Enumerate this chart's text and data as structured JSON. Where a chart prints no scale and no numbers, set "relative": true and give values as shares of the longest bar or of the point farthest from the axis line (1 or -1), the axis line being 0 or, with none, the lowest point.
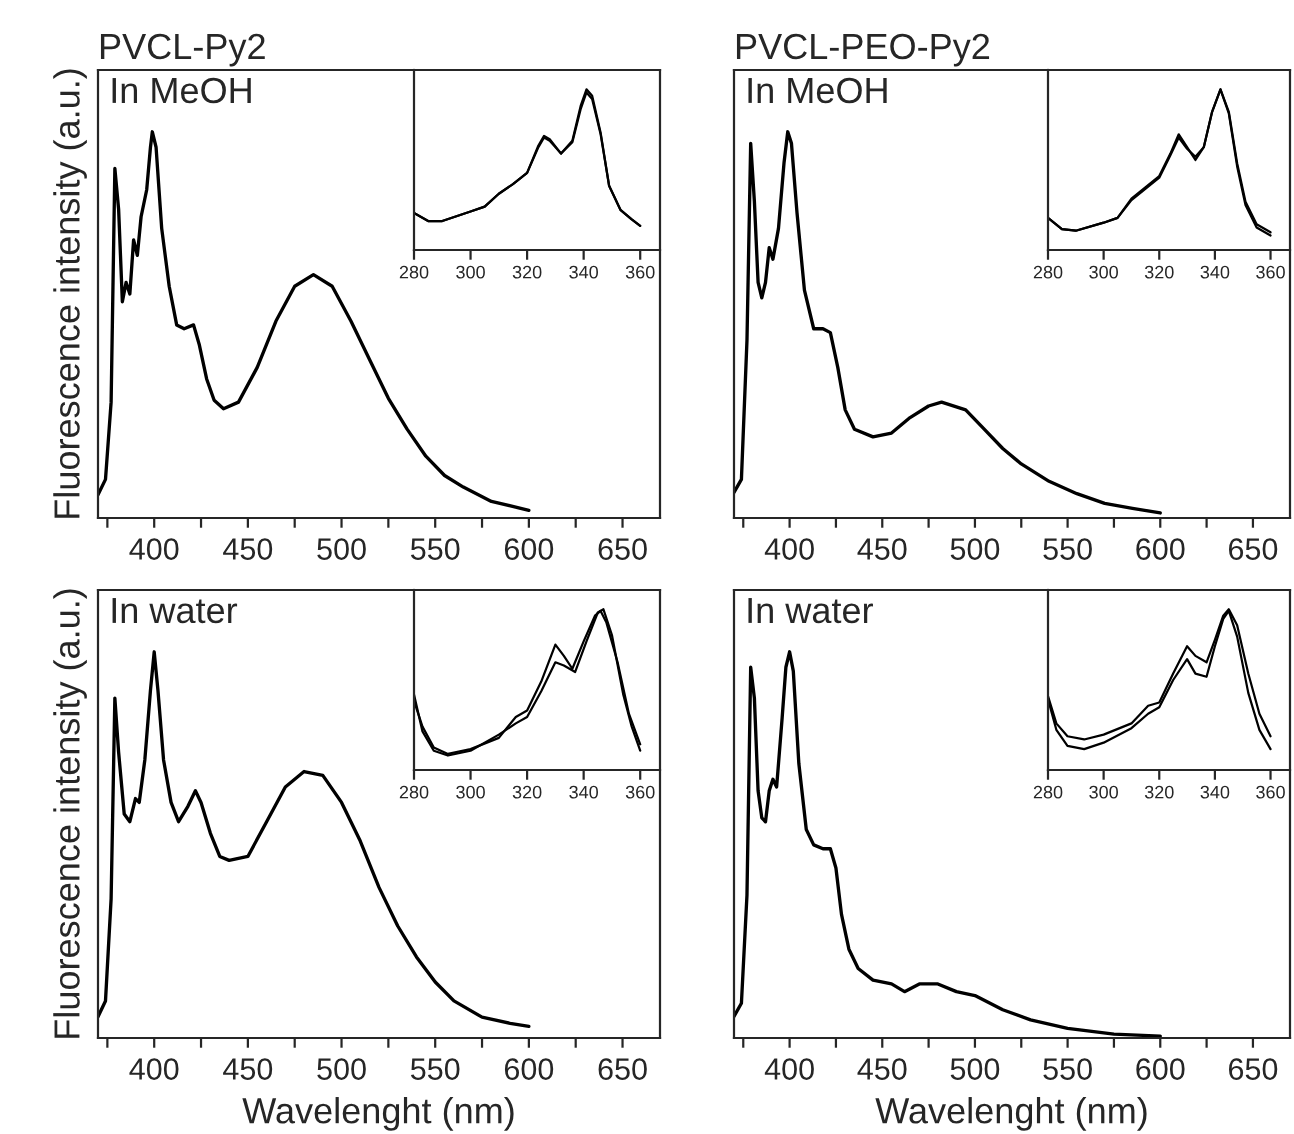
{
  "chart_data": [
    {
      "type": "line",
      "title": "PVCL-Py2",
      "ylabel": "Fluorescence intensity (a.u.)",
      "annotations": [
        "In MeOH"
      ],
      "relative": true,
      "tick_labels": "x",
      "xlim": [
        370,
        670
      ],
      "xticks": [
        {
          "value": 375,
          "label": null
        },
        400,
        {
          "value": 425,
          "label": null
        },
        450,
        {
          "value": 475,
          "label": null
        },
        500,
        {
          "value": 525,
          "label": null
        },
        550,
        {
          "value": 575,
          "label": null
        },
        600,
        {
          "value": 625,
          "label": null
        },
        650
      ],
      "series": [
        {
          "color": "#000000",
          "x": [
            370,
            374,
            377,
            379,
            381,
            383,
            385,
            387,
            389,
            391,
            393,
            396,
            398,
            399,
            401,
            404,
            408,
            412,
            416,
            421,
            424,
            428,
            432,
            437,
            445,
            455,
            465,
            475,
            485,
            495,
            505,
            515,
            525,
            535,
            545,
            555,
            565,
            580,
            600
          ],
          "values": [
            0.06,
            0.1,
            0.3,
            0.905,
            0.8,
            0.56,
            0.61,
            0.58,
            0.72,
            0.68,
            0.78,
            0.85,
            0.96,
            1.0,
            0.96,
            0.75,
            0.6,
            0.5,
            0.49,
            0.5,
            0.45,
            0.36,
            0.305,
            0.283,
            0.3,
            0.39,
            0.51,
            0.6,
            0.63,
            0.6,
            0.51,
            0.41,
            0.31,
            0.23,
            0.16,
            0.11,
            0.08,
            0.043,
            0.02
          ]
        }
      ]
    },
    {
      "type": "line",
      "relative": true,
      "tick_labels": "x",
      "xlim": [
        280,
        367
      ],
      "xticks": [
        280,
        300,
        320,
        340,
        360
      ],
      "series": [
        {
          "color": "#000000",
          "x": [
            280,
            285,
            290,
            300,
            305,
            310,
            315,
            320,
            324,
            326,
            328,
            332,
            336,
            339,
            341,
            343,
            346,
            349,
            353,
            357,
            360
          ],
          "values": [
            0.23,
            0.18,
            0.18,
            0.24,
            0.27,
            0.35,
            0.41,
            0.48,
            0.65,
            0.71,
            0.69,
            0.6,
            0.68,
            0.9,
            1.0,
            0.96,
            0.73,
            0.4,
            0.25,
            0.19,
            0.15
          ]
        },
        {
          "color": "#000000",
          "x": [
            280,
            285,
            290,
            300,
            305,
            310,
            315,
            320,
            324,
            326,
            328,
            332,
            336,
            339,
            341,
            343,
            346,
            349,
            353,
            357,
            360
          ],
          "values": [
            0.23,
            0.18,
            0.18,
            0.24,
            0.27,
            0.35,
            0.41,
            0.48,
            0.64,
            0.7,
            0.68,
            0.6,
            0.67,
            0.88,
            0.98,
            0.94,
            0.72,
            0.4,
            0.25,
            0.19,
            0.15
          ]
        }
      ]
    },
    {
      "type": "line",
      "title": "PVCL-PEO-Py2",
      "annotations": [
        "In MeOH"
      ],
      "relative": true,
      "tick_labels": "x",
      "xlim": [
        370,
        670
      ],
      "xticks": [
        {
          "value": 375,
          "label": null
        },
        400,
        {
          "value": 425,
          "label": null
        },
        450,
        {
          "value": 475,
          "label": null
        },
        500,
        {
          "value": 525,
          "label": null
        },
        550,
        {
          "value": 575,
          "label": null
        },
        600,
        {
          "value": 625,
          "label": null
        },
        650
      ],
      "series": [
        {
          "color": "#000000",
          "x": [
            370,
            374,
            377,
            379,
            381,
            383,
            385,
            387,
            389,
            391,
            394,
            397,
            399,
            401,
            404,
            408,
            413,
            418,
            422,
            426,
            430,
            435,
            445,
            455,
            465,
            475,
            482,
            495,
            505,
            515,
            525,
            540,
            555,
            570,
            585,
            600
          ],
          "values": [
            0.066,
            0.1,
            0.46,
            0.97,
            0.82,
            0.61,
            0.57,
            0.61,
            0.7,
            0.67,
            0.75,
            0.92,
            1.0,
            0.97,
            0.79,
            0.59,
            0.49,
            0.49,
            0.48,
            0.39,
            0.28,
            0.23,
            0.21,
            0.22,
            0.26,
            0.29,
            0.3,
            0.28,
            0.23,
            0.18,
            0.14,
            0.095,
            0.063,
            0.038,
            0.025,
            0.013
          ]
        }
      ]
    },
    {
      "type": "line",
      "relative": true,
      "tick_labels": "x",
      "xlim": [
        280,
        367
      ],
      "xticks": [
        280,
        300,
        320,
        340,
        360
      ],
      "series": [
        {
          "color": "#000000",
          "x": [
            280,
            285,
            290,
            300,
            305,
            310,
            315,
            320,
            324,
            327,
            330,
            333,
            336,
            339,
            342,
            345,
            348,
            351,
            355,
            360
          ],
          "values": [
            0.2,
            0.13,
            0.12,
            0.17,
            0.2,
            0.32,
            0.39,
            0.46,
            0.6,
            0.72,
            0.64,
            0.56,
            0.64,
            0.86,
            1.0,
            0.86,
            0.54,
            0.3,
            0.16,
            0.11
          ]
        },
        {
          "color": "#000000",
          "x": [
            280,
            285,
            290,
            300,
            305,
            310,
            315,
            320,
            324,
            327,
            330,
            333,
            336,
            339,
            342,
            345,
            348,
            351,
            355,
            360
          ],
          "values": [
            0.2,
            0.13,
            0.12,
            0.17,
            0.2,
            0.31,
            0.38,
            0.45,
            0.59,
            0.7,
            0.63,
            0.58,
            0.64,
            0.86,
            1.0,
            0.85,
            0.52,
            0.28,
            0.14,
            0.09
          ]
        }
      ]
    },
    {
      "type": "line",
      "xlabel": "Wavelenght (nm)",
      "ylabel": "Fluorescence intensity (a.u.)",
      "annotations": [
        "In water"
      ],
      "relative": true,
      "tick_labels": "x",
      "xlim": [
        370,
        670
      ],
      "xticks": [
        {
          "value": 375,
          "label": null
        },
        400,
        {
          "value": 425,
          "label": null
        },
        450,
        {
          "value": 475,
          "label": null
        },
        500,
        {
          "value": 525,
          "label": null
        },
        550,
        {
          "value": 575,
          "label": null
        },
        600,
        {
          "value": 625,
          "label": null
        },
        650
      ],
      "series": [
        {
          "color": "#000000",
          "x": [
            370,
            374,
            377,
            379,
            381,
            384,
            387,
            390,
            392,
            395,
            398,
            400,
            402,
            405,
            409,
            413,
            418,
            422,
            425,
            430,
            435,
            440,
            450,
            460,
            470,
            480,
            490,
            500,
            510,
            520,
            530,
            540,
            550,
            560,
            575,
            590,
            600
          ],
          "values": [
            0.055,
            0.096,
            0.36,
            0.88,
            0.74,
            0.58,
            0.56,
            0.62,
            0.61,
            0.72,
            0.9,
            1.0,
            0.9,
            0.72,
            0.61,
            0.56,
            0.6,
            0.64,
            0.61,
            0.53,
            0.47,
            0.46,
            0.47,
            0.56,
            0.65,
            0.69,
            0.68,
            0.61,
            0.51,
            0.39,
            0.29,
            0.21,
            0.145,
            0.096,
            0.054,
            0.038,
            0.03
          ]
        }
      ]
    },
    {
      "type": "line",
      "relative": true,
      "tick_labels": "x",
      "xlim": [
        280,
        367
      ],
      "xticks": [
        280,
        300,
        320,
        340,
        360
      ],
      "series": [
        {
          "color": "#000000",
          "x": [
            280,
            283,
            287,
            292,
            300,
            310,
            316,
            320,
            325,
            330,
            333,
            336,
            340,
            344,
            346,
            348,
            352,
            356,
            360
          ],
          "values": [
            0.43,
            0.27,
            0.14,
            0.1,
            0.13,
            0.2,
            0.33,
            0.37,
            0.55,
            0.78,
            0.71,
            0.63,
            0.8,
            0.96,
            0.99,
            0.92,
            0.67,
            0.35,
            0.16
          ]
        },
        {
          "color": "#000000",
          "x": [
            280,
            283,
            287,
            292,
            300,
            310,
            316,
            320,
            325,
            330,
            333,
            337,
            341,
            345,
            347,
            350,
            354,
            357,
            360
          ],
          "values": [
            0.47,
            0.24,
            0.12,
            0.09,
            0.12,
            0.22,
            0.29,
            0.33,
            0.49,
            0.67,
            0.65,
            0.61,
            0.8,
            0.98,
            1.0,
            0.84,
            0.47,
            0.27,
            0.12
          ]
        }
      ]
    },
    {
      "type": "line",
      "xlabel": "Wavelenght (nm)",
      "annotations": [
        "In water"
      ],
      "relative": true,
      "tick_labels": "x",
      "xlim": [
        370,
        670
      ],
      "xticks": [
        {
          "value": 375,
          "label": null
        },
        400,
        {
          "value": 425,
          "label": null
        },
        450,
        {
          "value": 475,
          "label": null
        },
        500,
        {
          "value": 525,
          "label": null
        },
        550,
        {
          "value": 575,
          "label": null
        },
        600,
        {
          "value": 625,
          "label": null
        },
        650
      ],
      "series": [
        {
          "color": "#000000",
          "x": [
            370,
            374,
            377,
            379,
            381,
            383,
            385,
            387,
            389,
            391,
            393,
            396,
            398,
            400,
            402,
            405,
            409,
            413,
            418,
            422,
            425,
            428,
            432,
            437,
            445,
            455,
            462,
            470,
            480,
            490,
            500,
            515,
            530,
            550,
            575,
            600
          ],
          "values": [
            0.056,
            0.09,
            0.37,
            0.96,
            0.88,
            0.64,
            0.57,
            0.56,
            0.64,
            0.67,
            0.65,
            0.83,
            0.96,
            1.0,
            0.95,
            0.71,
            0.54,
            0.5,
            0.49,
            0.49,
            0.44,
            0.32,
            0.23,
            0.18,
            0.15,
            0.14,
            0.12,
            0.14,
            0.14,
            0.12,
            0.11,
            0.073,
            0.047,
            0.025,
            0.01,
            0.005
          ]
        }
      ]
    },
    {
      "type": "line",
      "relative": true,
      "tick_labels": "x",
      "xlim": [
        280,
        367
      ],
      "xticks": [
        280,
        300,
        320,
        340,
        360
      ],
      "series": [
        {
          "color": "#000000",
          "x": [
            280,
            283,
            287,
            293,
            300,
            310,
            316,
            320,
            325,
            330,
            333,
            337,
            340,
            343,
            345,
            348,
            352,
            356,
            360
          ],
          "values": [
            0.46,
            0.29,
            0.21,
            0.19,
            0.22,
            0.29,
            0.4,
            0.42,
            0.6,
            0.77,
            0.71,
            0.67,
            0.81,
            0.96,
            1.0,
            0.9,
            0.6,
            0.35,
            0.21
          ]
        },
        {
          "color": "#000000",
          "x": [
            280,
            283,
            287,
            293,
            300,
            310,
            316,
            320,
            325,
            330,
            333,
            337,
            340,
            343,
            345,
            348,
            352,
            356,
            360
          ],
          "values": [
            0.44,
            0.25,
            0.15,
            0.13,
            0.17,
            0.26,
            0.35,
            0.39,
            0.56,
            0.69,
            0.6,
            0.58,
            0.77,
            0.94,
            0.99,
            0.83,
            0.48,
            0.25,
            0.13
          ]
        }
      ]
    }
  ]
}
